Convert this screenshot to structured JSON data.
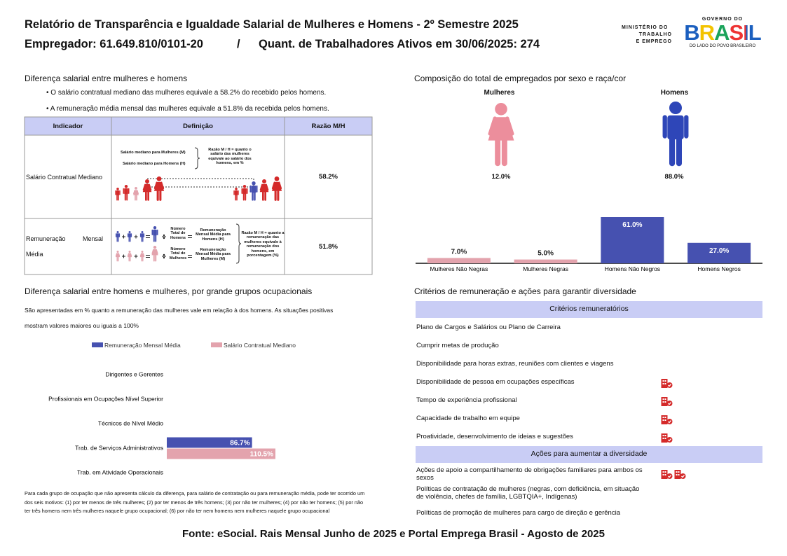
{
  "header": {
    "title": "Relatório de Transparência e Igualdade Salarial de Mulheres e Homens - 2º Semestre 2025",
    "employer": "Empregador: 61.649.810/0101-20",
    "separator": "/",
    "workers": "Quant. de Trabalhadores Ativos em 30/06/2025: 274",
    "ministry": [
      "MINISTÉRIO DO",
      "TRABALHO",
      "E EMPREGO"
    ],
    "gov_top": "GOVERNO DO",
    "gov_main": "BRASIL",
    "gov_sub": "DO LADO DO POVO BRASILEIRO"
  },
  "salary_gap": {
    "title": "Diferença salarial entre mulheres e homens",
    "bullets": [
      "O salário contratual mediano das mulheres equivale a 58.2% do recebido pelos homens.",
      "A remuneração média mensal das mulheres equivale a 51.8% da recebida pelos homens."
    ],
    "table": {
      "columns": [
        "Indicador",
        "Definição",
        "Razão M/H"
      ],
      "rows": [
        [
          "Salário Contratual Mediano",
          "58.2%"
        ],
        [
          "Remuneração Mensal Média",
          "51.8%"
        ]
      ]
    },
    "diagram_median": {
      "women": "Salário mediano para Mulheres (M)",
      "men": "Salário mediano para Homens (H)",
      "ratio": "Razão M / H = quanto o salário das mulheres equivale ao salário dos homens, em %"
    },
    "diagram_mean": {
      "men_count": "Número Total de Homens",
      "men_pay": "Remuneração Mensal Média para Homens (H)",
      "women_count": "Número Total de Mulheres",
      "women_pay": "Remuneração Mensal Média para Mulheres (M)",
      "ratio": "Razão M / H = quanto a remuneração das mulheres equivale à remuneração dos homens, em porcentagem (%)"
    }
  },
  "composition": {
    "title": "Composição do total de empregados por sexo e raça/cor",
    "women_label": "Mulheres",
    "men_label": "Homens",
    "women_share": "12.0%",
    "men_share": "88.0%"
  },
  "occupations": {
    "title": "Diferença salarial entre homens e mulheres, por grande grupos ocupacionais",
    "subtitle": "São apresentadas em % quanto a remuneração das mulheres vale em relação à dos homens. As situações positivas mostram valores maiores ou iguais a 100%",
    "footnote": "Para cada grupo de ocupação que não apresenta cálculo da diferença, para salário de contratação ou para remuneração média, pode ter ocorrido um dos seis motivos: (1) por ter menos de três mulheres; (2) por ter menos de três homens; (3) por não ter mulheres; (4) por não ter homens; (5) por não ter três homens nem três mulheres naquele grupo ocupacional; (6) por não ter nem homens nem mulheres naquele grupo ocupacional"
  },
  "criteria": {
    "title": "Critérios de remuneração e ações para garantir diversidade",
    "criteria_header": "Critérios remuneratórios",
    "items": [
      "Plano de Cargos e Salários ou Plano de Carreira",
      "Cumprir metas de produção",
      "Disponibilidade para horas extras, reuniões com clientes e viagens",
      "Disponibilidade de pessoa em ocupações específicas",
      "Tempo de experiência profissional",
      "Capacidade de trabalho em equipe",
      "Proatividade, desenvolvimento de ideias e sugestões"
    ],
    "actions_header": "Ações para aumentar a diversidade",
    "actions": [
      "Ações de apoio a compartilhamento de obrigações familiares para ambos os sexos",
      "Políticas de contratação de mulheres (negras, com deficiência, em situação de violência, chefes de família, LGBTQIA+, Indígenas)",
      "Políticas de promoção de mulheres para cargo de direção e gerência"
    ]
  },
  "source": "Fonte: eSocial. Rais Mensal Junho de 2025 e Portal Emprega Brasil - Agosto de 2025",
  "chart_data": [
    {
      "type": "bar",
      "categories": [
        "Mulheres Não Negras",
        "Mulheres Negras",
        "Homens Não Negros",
        "Homens Negros"
      ],
      "values": [
        7.0,
        5.0,
        61.0,
        27.0
      ],
      "value_labels": [
        "7.0%",
        "5.0%",
        "61.0%",
        "27.0%"
      ],
      "colors": [
        "#e3a3ad",
        "#e3a3ad",
        "#4651b0",
        "#4651b0"
      ]
    },
    {
      "type": "hbar",
      "categories": [
        "Dirigentes e Gerentes",
        "Profissionais em Ocupações Nível Superior",
        "Técnicos de Nível Médio",
        "Trab. de Serviços Administrativos",
        "Trab. em Atividade Operacionais"
      ],
      "series": [
        {
          "name": "Remuneração Mensal Média",
          "color": "#4651b0",
          "values": [
            null,
            null,
            null,
            86.7,
            null
          ],
          "value_labels": [
            null,
            null,
            null,
            "86.7%",
            null
          ]
        },
        {
          "name": "Salário Contratual Mediano",
          "color": "#e3a3ad",
          "values": [
            null,
            null,
            null,
            110.5,
            null
          ],
          "value_labels": [
            null,
            null,
            null,
            "110.5%",
            null
          ]
        }
      ]
    }
  ]
}
